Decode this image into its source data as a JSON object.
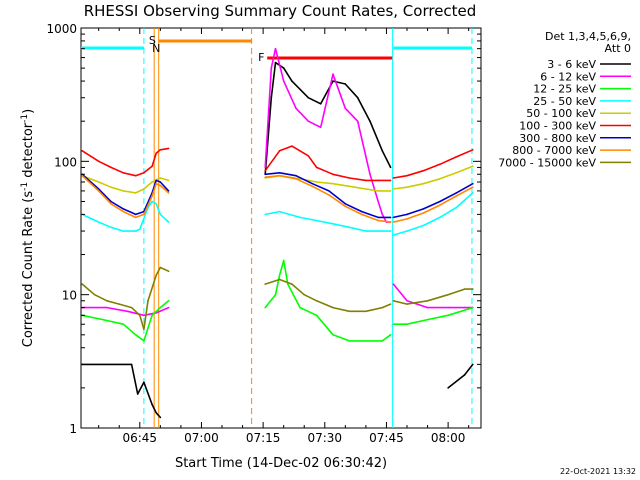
{
  "chart_data": {
    "type": "line",
    "title": "RHESSI Observing Summary Count Rates, Corrected",
    "xlabel": "Start Time (14-Dec-02 06:30:42)",
    "ylabel_main": "Corrected Count Rate (s",
    "ylabel_sup1": "-1",
    "ylabel_mid": " detector",
    "ylabel_sup2": "-1",
    "ylabel_end": ")",
    "xlim_minutes": [
      30.7,
      128.0
    ],
    "ylim": [
      1,
      1000
    ],
    "yscale": "log",
    "x_ticks": [
      {
        "minute": 45,
        "label": "06:45"
      },
      {
        "minute": 60,
        "label": "07:00"
      },
      {
        "minute": 75,
        "label": "07:15"
      },
      {
        "minute": 90,
        "label": "07:30"
      },
      {
        "minute": 105,
        "label": "07:45"
      },
      {
        "minute": 120,
        "label": "08:00"
      }
    ],
    "y_ticks": [
      {
        "value": 1,
        "label": "1"
      },
      {
        "value": 10,
        "label": "10"
      },
      {
        "value": 100,
        "label": "100"
      },
      {
        "value": 1000,
        "label": "1000"
      }
    ],
    "legend": {
      "header_line1": "Det 1,3,4,5,6,9,",
      "header_line2": "Att 0",
      "placement": "right"
    },
    "series": [
      {
        "name": "3 - 6 keV",
        "color": "#000000",
        "points": [
          [
            31,
            3
          ],
          [
            43,
            3
          ],
          [
            44.5,
            1.8
          ],
          [
            46,
            2.2
          ],
          [
            48,
            1.5
          ],
          [
            49,
            1.3
          ],
          [
            50,
            1.2
          ],
          [
            72,
            null
          ],
          [
            75.5,
            80
          ],
          [
            77,
            300
          ],
          [
            78,
            550
          ],
          [
            80,
            500
          ],
          [
            82,
            400
          ],
          [
            86,
            300
          ],
          [
            89,
            270
          ],
          [
            92,
            400
          ],
          [
            95,
            380
          ],
          [
            98,
            300
          ],
          [
            101,
            200
          ],
          [
            104,
            120
          ],
          [
            106,
            90
          ],
          [
            106.5,
            null
          ],
          [
            120,
            2
          ],
          [
            124,
            2.5
          ],
          [
            126,
            3
          ]
        ]
      },
      {
        "name": "6 - 12 keV",
        "color": "#ff00ff",
        "points": [
          [
            31,
            8
          ],
          [
            37,
            8
          ],
          [
            42,
            7.5
          ],
          [
            46,
            7
          ],
          [
            48,
            7.2
          ],
          [
            49,
            7.3
          ],
          [
            52,
            8
          ],
          [
            72,
            null
          ],
          [
            75.5,
            90
          ],
          [
            77,
            500
          ],
          [
            78,
            700
          ],
          [
            80,
            400
          ],
          [
            83,
            250
          ],
          [
            86,
            200
          ],
          [
            89,
            180
          ],
          [
            92,
            450
          ],
          [
            95,
            250
          ],
          [
            98,
            200
          ],
          [
            101,
            80
          ],
          [
            103,
            50
          ],
          [
            104,
            40
          ],
          [
            105,
            35
          ],
          [
            106,
            35
          ],
          [
            106.5,
            null
          ],
          [
            106.7,
            12
          ],
          [
            110,
            9
          ],
          [
            115,
            8
          ],
          [
            120,
            8
          ],
          [
            124,
            8
          ],
          [
            126,
            8
          ]
        ]
      },
      {
        "name": "12 - 25 keV",
        "color": "#00ff00",
        "points": [
          [
            31,
            7
          ],
          [
            36,
            6.5
          ],
          [
            41,
            6
          ],
          [
            44,
            5
          ],
          [
            46,
            4.5
          ],
          [
            48,
            7
          ],
          [
            50,
            8
          ],
          [
            52,
            9
          ],
          [
            72,
            null
          ],
          [
            75.5,
            8
          ],
          [
            78,
            10
          ],
          [
            79,
            14
          ],
          [
            80,
            18
          ],
          [
            81,
            12
          ],
          [
            84,
            8
          ],
          [
            88,
            7
          ],
          [
            92,
            5
          ],
          [
            96,
            4.5
          ],
          [
            100,
            4.5
          ],
          [
            104,
            4.5
          ],
          [
            106,
            5
          ],
          [
            106.5,
            null
          ],
          [
            106.7,
            6
          ],
          [
            110,
            6
          ],
          [
            115,
            6.5
          ],
          [
            120,
            7
          ],
          [
            126,
            8
          ]
        ]
      },
      {
        "name": "25 - 50 keV",
        "color": "#00ffff",
        "points": [
          [
            31,
            40
          ],
          [
            35,
            35
          ],
          [
            38,
            32
          ],
          [
            41,
            30
          ],
          [
            44,
            30
          ],
          [
            45,
            31
          ],
          [
            47,
            45
          ],
          [
            48,
            50
          ],
          [
            49,
            48
          ],
          [
            50,
            40
          ],
          [
            52,
            35
          ],
          [
            72,
            null
          ],
          [
            75.5,
            40
          ],
          [
            79,
            42
          ],
          [
            84,
            38
          ],
          [
            88,
            36
          ],
          [
            92,
            34
          ],
          [
            96,
            32
          ],
          [
            100,
            30
          ],
          [
            103,
            30
          ],
          [
            106,
            30
          ],
          [
            106.5,
            null
          ],
          [
            106.7,
            28
          ],
          [
            110,
            30
          ],
          [
            114,
            33
          ],
          [
            118,
            38
          ],
          [
            122,
            45
          ],
          [
            126,
            58
          ]
        ]
      },
      {
        "name": "50 - 100 keV",
        "color": "#cccc00",
        "points": [
          [
            31,
            78
          ],
          [
            35,
            70
          ],
          [
            38,
            64
          ],
          [
            41,
            60
          ],
          [
            44,
            58
          ],
          [
            46,
            62
          ],
          [
            48,
            70
          ],
          [
            50,
            75
          ],
          [
            52,
            72
          ],
          [
            72,
            null
          ],
          [
            75.5,
            75
          ],
          [
            79,
            78
          ],
          [
            84,
            74
          ],
          [
            88,
            70
          ],
          [
            92,
            68
          ],
          [
            96,
            65
          ],
          [
            100,
            62
          ],
          [
            103,
            60
          ],
          [
            106,
            60
          ],
          [
            106.5,
            null
          ],
          [
            106.7,
            62
          ],
          [
            110,
            64
          ],
          [
            114,
            68
          ],
          [
            118,
            74
          ],
          [
            122,
            82
          ],
          [
            126,
            92
          ]
        ]
      },
      {
        "name": "100 - 300 keV",
        "color": "#ff0000",
        "points": [
          [
            31,
            120
          ],
          [
            35,
            100
          ],
          [
            38,
            90
          ],
          [
            41,
            82
          ],
          [
            44,
            78
          ],
          [
            46,
            82
          ],
          [
            48,
            92
          ],
          [
            49,
            115
          ],
          [
            50,
            122
          ],
          [
            52,
            125
          ],
          [
            72,
            null
          ],
          [
            75.5,
            85
          ],
          [
            79,
            120
          ],
          [
            82,
            130
          ],
          [
            86,
            110
          ],
          [
            88,
            90
          ],
          [
            92,
            80
          ],
          [
            96,
            75
          ],
          [
            100,
            72
          ],
          [
            103,
            72
          ],
          [
            106,
            72
          ],
          [
            106.5,
            null
          ],
          [
            106.7,
            75
          ],
          [
            110,
            78
          ],
          [
            114,
            85
          ],
          [
            118,
            95
          ],
          [
            122,
            108
          ],
          [
            126,
            122
          ]
        ]
      },
      {
        "name": "300 - 800 keV",
        "color": "#0000cc",
        "points": [
          [
            31,
            80
          ],
          [
            35,
            62
          ],
          [
            38,
            50
          ],
          [
            41,
            44
          ],
          [
            44,
            40
          ],
          [
            46,
            42
          ],
          [
            48,
            58
          ],
          [
            49,
            72
          ],
          [
            50,
            70
          ],
          [
            52,
            60
          ],
          [
            72,
            null
          ],
          [
            75.5,
            80
          ],
          [
            79,
            82
          ],
          [
            83,
            78
          ],
          [
            87,
            68
          ],
          [
            91,
            60
          ],
          [
            95,
            48
          ],
          [
            99,
            42
          ],
          [
            103,
            38
          ],
          [
            106,
            38
          ],
          [
            106.5,
            null
          ],
          [
            106.7,
            38
          ],
          [
            110,
            40
          ],
          [
            114,
            44
          ],
          [
            118,
            50
          ],
          [
            122,
            58
          ],
          [
            126,
            68
          ]
        ]
      },
      {
        "name": "800 - 7000 keV",
        "color": "#ff8800",
        "points": [
          [
            31,
            78
          ],
          [
            35,
            60
          ],
          [
            38,
            48
          ],
          [
            41,
            42
          ],
          [
            44,
            38
          ],
          [
            46,
            40
          ],
          [
            48,
            55
          ],
          [
            49,
            68
          ],
          [
            50,
            66
          ],
          [
            52,
            58
          ],
          [
            72,
            null
          ],
          [
            75.5,
            76
          ],
          [
            79,
            78
          ],
          [
            83,
            74
          ],
          [
            87,
            65
          ],
          [
            91,
            56
          ],
          [
            95,
            46
          ],
          [
            99,
            40
          ],
          [
            103,
            36
          ],
          [
            106,
            35
          ],
          [
            106.5,
            null
          ],
          [
            106.7,
            35
          ],
          [
            110,
            37
          ],
          [
            114,
            41
          ],
          [
            118,
            47
          ],
          [
            122,
            55
          ],
          [
            126,
            64
          ]
        ]
      },
      {
        "name": "7000 - 15000 keV",
        "color": "#808000",
        "points": [
          [
            31,
            12
          ],
          [
            34,
            10
          ],
          [
            37,
            9
          ],
          [
            40,
            8.5
          ],
          [
            43,
            8
          ],
          [
            45,
            7
          ],
          [
            46,
            5.5
          ],
          [
            47,
            9
          ],
          [
            49,
            14
          ],
          [
            50,
            16
          ],
          [
            52,
            15
          ],
          [
            72,
            null
          ],
          [
            75.5,
            12
          ],
          [
            79,
            13
          ],
          [
            82,
            12
          ],
          [
            85,
            10
          ],
          [
            88,
            9
          ],
          [
            92,
            8
          ],
          [
            96,
            7.5
          ],
          [
            100,
            7.5
          ],
          [
            104,
            8
          ],
          [
            106,
            8.5
          ],
          [
            106.5,
            null
          ],
          [
            106.7,
            9
          ],
          [
            110,
            8.5
          ],
          [
            115,
            9
          ],
          [
            120,
            10
          ],
          [
            124,
            11
          ],
          [
            126,
            11
          ]
        ]
      }
    ],
    "annotations": {
      "saa_label": "S",
      "flare_label": "F",
      "night_label": "N",
      "saa_bar": {
        "x_start": 49.5,
        "x_end": 72.2
      },
      "flare_bar": {
        "x_start": 76.0,
        "x_end": 106.4
      },
      "top_bars": [
        {
          "x_start": 30.7,
          "x_end": 46.0
        },
        {
          "x_start": 106.7,
          "x_end": 125.8
        }
      ],
      "dashed_lines_orange": [
        72.2
      ],
      "dashed_lines_cyan": [
        46.0,
        125.8
      ],
      "solid_lines_orange": [
        48.5,
        49.6
      ],
      "solid_lines_cyan": [
        106.5
      ]
    }
  },
  "footer": {
    "date_stamp": "22-Oct-2021 13:32"
  }
}
